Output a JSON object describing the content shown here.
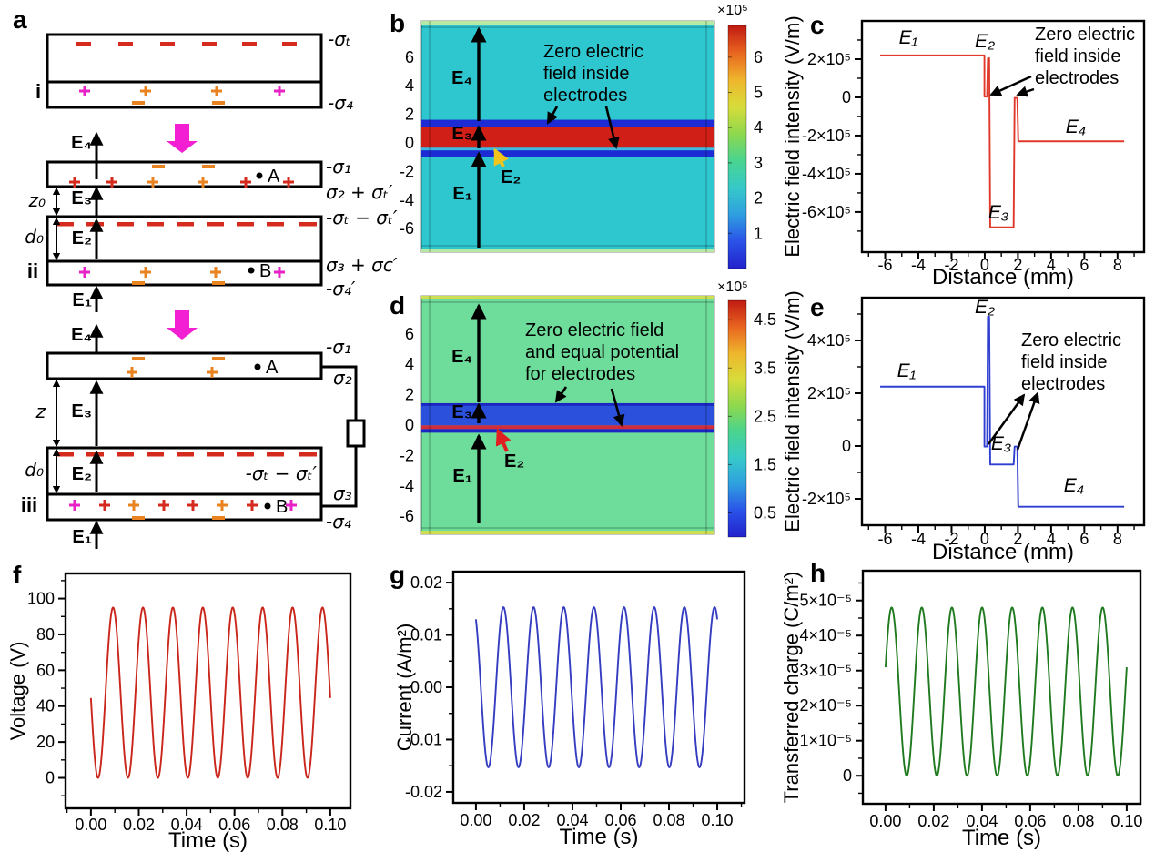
{
  "letters": {
    "a": "a",
    "b": "b",
    "c": "c",
    "d": "d",
    "e": "e",
    "f": "f",
    "g": "g",
    "h": "h"
  },
  "panel_a": {
    "stages": {
      "i": "i",
      "ii": "ii",
      "iii": "iii"
    },
    "field_labels": {
      "E1": "E₁",
      "E2": "E₂",
      "E3": "E₃",
      "E4": "E₄"
    },
    "dims": {
      "z0": "z₀",
      "d0": "d₀",
      "z": "z"
    },
    "points": {
      "A": "A",
      "B": "B"
    },
    "sigma_i": {
      "top": "-σₜ",
      "bottom": "-σ₄"
    },
    "sigma_ii": {
      "s1": "-σ₁",
      "s2": "σ₂ + σₜ′",
      "st": "-σₜ − σₜ′",
      "s3": "σ₃ + σc′",
      "s4": "-σ₄′"
    },
    "sigma_iii": {
      "s1": "-σ₁",
      "s2": "σ₂",
      "st": "-σₜ − σₜ′",
      "s3": "σ₃",
      "s4": "-σ₄"
    },
    "colors": {
      "magenta": "#e822c6",
      "orange": "#e8831f",
      "red": "#d52a1e",
      "black": "#000000",
      "big_arrow": "#f31fd3"
    }
  },
  "chart_data": [
    {
      "panel": "b",
      "type": "heatmap",
      "unit_multiplier": "×10⁵",
      "y_ticks": [
        "6",
        "4",
        "2",
        "0",
        "-2",
        "-4",
        "-6"
      ],
      "y_tick_values": [
        6,
        4,
        2,
        0,
        -2,
        -4,
        -6
      ],
      "colorbar_ticks": [
        "6",
        "5",
        "4",
        "3",
        "2",
        "1"
      ],
      "colorbar_tick_values": [
        6,
        5,
        4,
        3,
        2,
        1
      ],
      "colorbar_range": [
        0,
        6.9
      ],
      "background_color": "#2fc7cf",
      "edge_strip_color": "#b7e9a4",
      "layers": [
        {
          "name": "top-electrode-zero-field",
          "y_from": 1.12,
          "y_to": 1.62,
          "color": "#1c2bd4"
        },
        {
          "name": "dielectric-high-field",
          "y_from": -0.34,
          "y_to": 1.12,
          "color": "#d01f16"
        },
        {
          "name": "air-gap-line",
          "y_from": -0.52,
          "y_to": -0.34,
          "color": "#3fb9e0"
        },
        {
          "name": "bottom-electrode-zero-field",
          "y_from": -1.0,
          "y_to": -0.52,
          "color": "#1c2bd4"
        }
      ],
      "labels": {
        "E1": "E₁",
        "E2": "E₂",
        "E3": "E₃",
        "E4": "E₄"
      },
      "e2_color": "#f2c41c",
      "note_lines": [
        "Zero electric",
        "field inside",
        "electrodes"
      ]
    },
    {
      "panel": "c",
      "type": "line",
      "color": "#e0382a",
      "xlabel": "Distance (mm)",
      "ylabel": "Electric field intensity (V/m)",
      "xlim": [
        -7.4,
        9.6
      ],
      "ylim": [
        -810000,
        400000
      ],
      "xticks": [
        {
          "v": -6,
          "label": "-6"
        },
        {
          "v": -4,
          "label": "-4"
        },
        {
          "v": -2,
          "label": "-2"
        },
        {
          "v": 0,
          "label": "0"
        },
        {
          "v": 2,
          "label": "2"
        },
        {
          "v": 4,
          "label": "4"
        },
        {
          "v": 6,
          "label": "6"
        },
        {
          "v": 8,
          "label": "8"
        }
      ],
      "yticks": [
        {
          "v": 200000,
          "label": "2×10⁵"
        },
        {
          "v": 0,
          "label": "0"
        },
        {
          "v": -200000,
          "label": "-2×10⁵"
        },
        {
          "v": -400000,
          "label": "-4×10⁵"
        },
        {
          "v": -600000,
          "label": "-6×10⁵"
        }
      ],
      "points": [
        [
          -6.3,
          220000
        ],
        [
          -0.02,
          220000
        ],
        [
          -0.02,
          4000
        ],
        [
          0.14,
          4000
        ],
        [
          0.19,
          205000
        ],
        [
          0.27,
          205000
        ],
        [
          0.33,
          -680000
        ],
        [
          1.74,
          -680000
        ],
        [
          1.8,
          -3000
        ],
        [
          1.96,
          -3000
        ],
        [
          2.02,
          -230000
        ],
        [
          8.4,
          -230000
        ]
      ],
      "labels": {
        "E1": "E₁",
        "E2": "E₂",
        "E3": "E₃",
        "E4": "E₄"
      },
      "note_lines": [
        "Zero electric",
        "field inside",
        "electrodes"
      ]
    },
    {
      "panel": "d",
      "type": "heatmap",
      "unit_multiplier": "×10⁵",
      "y_ticks": [
        "6",
        "4",
        "2",
        "0",
        "-2",
        "-4",
        "-6"
      ],
      "y_tick_values": [
        6,
        4,
        2,
        0,
        -2,
        -4,
        -6
      ],
      "colorbar_ticks": [
        "4.5",
        "3.5",
        "2.5",
        "1.5",
        "0.5"
      ],
      "colorbar_tick_values": [
        4.5,
        3.5,
        2.5,
        1.5,
        0.5
      ],
      "colorbar_range": [
        0,
        4.9
      ],
      "background_color": "#6edc9a",
      "edge_strip_color": "#cede52",
      "layers": [
        {
          "name": "top-electrode-edge",
          "y_from": 1.26,
          "y_to": 1.44,
          "color": "#1a27c4"
        },
        {
          "name": "dielectric-low-field",
          "y_from": -0.02,
          "y_to": 1.26,
          "color": "#2b50dc"
        },
        {
          "name": "contact-field-line",
          "y_from": -0.26,
          "y_to": -0.02,
          "color": "#d22b3a"
        },
        {
          "name": "bottom-electrode-edge",
          "y_from": -0.5,
          "y_to": -0.26,
          "color": "#1a27c4"
        }
      ],
      "labels": {
        "E1": "E₁",
        "E2": "E₂",
        "E3": "E₃",
        "E4": "E₄"
      },
      "e2_color": "#e02020",
      "note_lines": [
        "Zero electric field",
        "and equal potential",
        "for electrodes"
      ]
    },
    {
      "panel": "e",
      "type": "line",
      "color": "#2f3fd0",
      "xlabel": "Distance (mm)",
      "ylabel": "Electric field intensity (V/m)",
      "xlim": [
        -7.4,
        9.6
      ],
      "ylim": [
        -300000,
        562000
      ],
      "xticks": [
        {
          "v": -6,
          "label": "-6"
        },
        {
          "v": -4,
          "label": "-4"
        },
        {
          "v": -2,
          "label": "-2"
        },
        {
          "v": 0,
          "label": "0"
        },
        {
          "v": 2,
          "label": "2"
        },
        {
          "v": 4,
          "label": "4"
        },
        {
          "v": 6,
          "label": "6"
        },
        {
          "v": 8,
          "label": "8"
        }
      ],
      "yticks": [
        {
          "v": 400000,
          "label": "4×10⁵"
        },
        {
          "v": 200000,
          "label": "2×10⁵"
        },
        {
          "v": 0,
          "label": "0"
        },
        {
          "v": -200000,
          "label": "-2×10⁵"
        }
      ],
      "points": [
        [
          -6.3,
          225000
        ],
        [
          -0.02,
          225000
        ],
        [
          -0.02,
          -2000
        ],
        [
          0.14,
          -2000
        ],
        [
          0.19,
          490000
        ],
        [
          0.27,
          490000
        ],
        [
          0.33,
          -70000
        ],
        [
          1.74,
          -70000
        ],
        [
          1.8,
          -2000
        ],
        [
          1.96,
          -2000
        ],
        [
          2.02,
          -230000
        ],
        [
          8.4,
          -230000
        ]
      ],
      "labels": {
        "E1": "E₁",
        "E2": "E₂",
        "E3": "E₃",
        "E4": "E₄"
      },
      "note_lines": [
        "Zero electric",
        "field inside",
        "electrodes"
      ]
    },
    {
      "panel": "f",
      "type": "line",
      "color": "#c9251b",
      "xlabel": "Time (s)",
      "ylabel": "Voltage (V)",
      "xlim": [
        -0.0106,
        0.1084
      ],
      "ylim": [
        -17,
        114
      ],
      "xticks": [
        {
          "v": 0,
          "label": "0.00"
        },
        {
          "v": 0.02,
          "label": "0.02"
        },
        {
          "v": 0.04,
          "label": "0.04"
        },
        {
          "v": 0.06,
          "label": "0.06"
        },
        {
          "v": 0.08,
          "label": "0.08"
        },
        {
          "v": 0.1,
          "label": "0.10"
        }
      ],
      "yticks": [
        {
          "v": 100,
          "label": "100"
        },
        {
          "v": 80,
          "label": "80"
        },
        {
          "v": 60,
          "label": "60"
        },
        {
          "v": 40,
          "label": "40"
        },
        {
          "v": 20,
          "label": "20"
        },
        {
          "v": 0,
          "label": "0"
        }
      ],
      "sine": {
        "offset": 47.5,
        "amplitude": 47.5,
        "frequency_hz": 80,
        "phase_rad": 3.2046,
        "t_start": 0,
        "t_end": 0.1
      }
    },
    {
      "panel": "g",
      "type": "line",
      "color": "#343cc0",
      "xlabel": "Time (s)",
      "ylabel": "Current (A/m²)",
      "xlim": [
        -0.0094,
        0.1113
      ],
      "ylim": [
        -0.0221,
        0.0221
      ],
      "xticks": [
        {
          "v": 0,
          "label": "0.00"
        },
        {
          "v": 0.02,
          "label": "0.02"
        },
        {
          "v": 0.04,
          "label": "0.04"
        },
        {
          "v": 0.06,
          "label": "0.06"
        },
        {
          "v": 0.08,
          "label": "0.08"
        },
        {
          "v": 0.1,
          "label": "0.10"
        }
      ],
      "yticks": [
        {
          "v": 0.02,
          "label": "0.02"
        },
        {
          "v": 0.01,
          "label": "0.01"
        },
        {
          "v": 0,
          "label": "0.00"
        },
        {
          "v": -0.01,
          "label": "-0.01"
        },
        {
          "v": -0.02,
          "label": "-0.02"
        }
      ],
      "sine": {
        "offset": 0,
        "amplitude": 0.0153,
        "frequency_hz": 80,
        "phase_rad": 2.127,
        "t_start": 0,
        "t_end": 0.1
      }
    },
    {
      "panel": "h",
      "type": "line",
      "color": "#1f7a1f",
      "xlabel": "Time (s)",
      "ylabel": "Transferred charge (C/m²)",
      "xlim": [
        -0.0094,
        0.1057
      ],
      "ylim": [
        -8e-06,
        5.85e-05
      ],
      "xticks": [
        {
          "v": 0,
          "label": "0.00"
        },
        {
          "v": 0.02,
          "label": "0.02"
        },
        {
          "v": 0.04,
          "label": "0.04"
        },
        {
          "v": 0.06,
          "label": "0.06"
        },
        {
          "v": 0.08,
          "label": "0.08"
        },
        {
          "v": 0.1,
          "label": "0.10"
        }
      ],
      "yticks": [
        {
          "v": 5e-05,
          "label": "5×10⁻⁵"
        },
        {
          "v": 4e-05,
          "label": "4×10⁻⁵"
        },
        {
          "v": 3e-05,
          "label": "3×10⁻⁵"
        },
        {
          "v": 2e-05,
          "label": "2×10⁻⁵"
        },
        {
          "v": 1e-05,
          "label": "1×10⁻⁵"
        },
        {
          "v": 0,
          "label": "0"
        }
      ],
      "sine": {
        "offset": 2.4e-05,
        "amplitude": 2.4e-05,
        "frequency_hz": 80,
        "phase_rad": 0.294,
        "t_start": 0,
        "t_end": 0.1
      }
    }
  ],
  "colorbar_gradient": [
    "#2222cc",
    "#2a52e8",
    "#2f9fe0",
    "#36c9c9",
    "#49d48f",
    "#8fd84e",
    "#d8dc3a",
    "#efb52c",
    "#e86420",
    "#c01a12"
  ]
}
